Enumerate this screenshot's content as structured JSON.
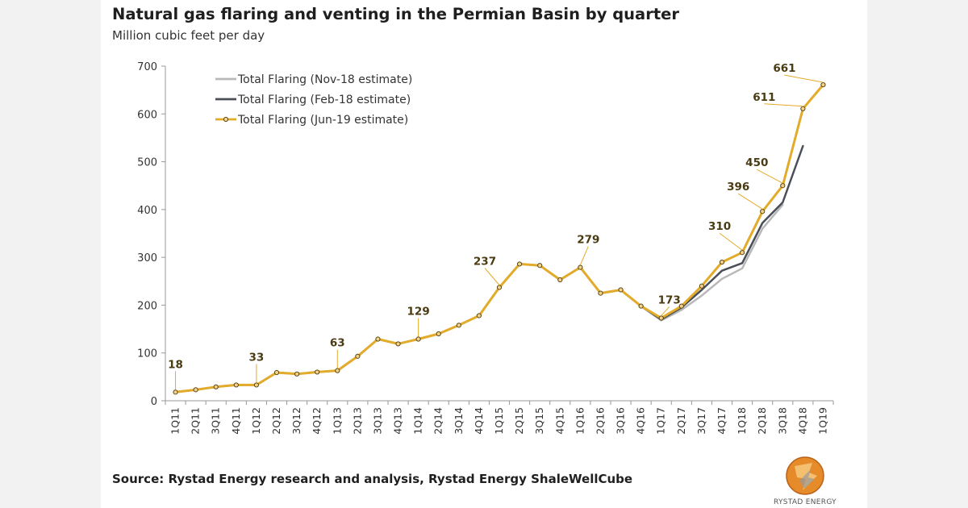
{
  "header": {
    "title": "Natural gas flaring and venting in the Permian Basin by quarter",
    "subtitle": "Million cubic feet per day"
  },
  "footer": {
    "source": "Source: Rystad Energy research and analysis, Rystad Energy ShaleWellCube",
    "logo_text": "RYSTAD ENERGY"
  },
  "chart_data": {
    "type": "line",
    "title": "Natural gas flaring and venting in the Permian Basin by quarter",
    "ylabel": "Million cubic feet per day",
    "xlabel": "",
    "ylim": [
      0,
      700
    ],
    "yticks": [
      0,
      100,
      200,
      300,
      400,
      500,
      600,
      700
    ],
    "grid": false,
    "legend_position": "top-left",
    "categories": [
      "1Q11",
      "2Q11",
      "3Q11",
      "4Q11",
      "1Q12",
      "2Q12",
      "3Q12",
      "4Q12",
      "1Q13",
      "2Q13",
      "3Q13",
      "4Q13",
      "1Q14",
      "2Q14",
      "3Q14",
      "4Q14",
      "1Q15",
      "2Q15",
      "3Q15",
      "4Q15",
      "1Q16",
      "2Q16",
      "3Q16",
      "4Q16",
      "1Q17",
      "2Q17",
      "3Q17",
      "4Q17",
      "1Q18",
      "2Q18",
      "3Q18",
      "4Q18",
      "1Q19"
    ],
    "series": [
      {
        "name": "Total Flaring (Nov-18 estimate)",
        "color": "#b8b8b8",
        "markers": false,
        "values": [
          18,
          23,
          29,
          33,
          33,
          59,
          56,
          60,
          63,
          93,
          129,
          119,
          129,
          140,
          158,
          178,
          237,
          286,
          283,
          253,
          279,
          225,
          232,
          198,
          168,
          190,
          220,
          255,
          277,
          360,
          410,
          null,
          null
        ]
      },
      {
        "name": "Total Flaring (Feb-18 estimate)",
        "color": "#4a4f57",
        "markers": false,
        "values": [
          18,
          23,
          29,
          33,
          33,
          59,
          56,
          60,
          63,
          93,
          129,
          119,
          129,
          140,
          158,
          178,
          237,
          286,
          283,
          253,
          279,
          225,
          232,
          198,
          170,
          195,
          232,
          272,
          288,
          372,
          415,
          533,
          null
        ]
      },
      {
        "name": "Total Flaring (Jun-19 estimate)",
        "color": "#e3ab2a",
        "markers": true,
        "values": [
          18,
          23,
          29,
          33,
          33,
          59,
          56,
          60,
          63,
          93,
          129,
          119,
          129,
          140,
          158,
          178,
          237,
          286,
          283,
          253,
          279,
          225,
          232,
          198,
          173,
          198,
          240,
          290,
          310,
          396,
          450,
          611,
          661
        ]
      }
    ],
    "data_labels": [
      {
        "index": 0,
        "value": "18"
      },
      {
        "index": 4,
        "value": "33"
      },
      {
        "index": 8,
        "value": "63"
      },
      {
        "index": 12,
        "value": "129"
      },
      {
        "index": 16,
        "value": "237"
      },
      {
        "index": 20,
        "value": "279"
      },
      {
        "index": 24,
        "value": "173"
      },
      {
        "index": 28,
        "value": "310"
      },
      {
        "index": 29,
        "value": "396"
      },
      {
        "index": 30,
        "value": "450"
      },
      {
        "index": 31,
        "value": "611"
      },
      {
        "index": 32,
        "value": "661"
      }
    ]
  }
}
